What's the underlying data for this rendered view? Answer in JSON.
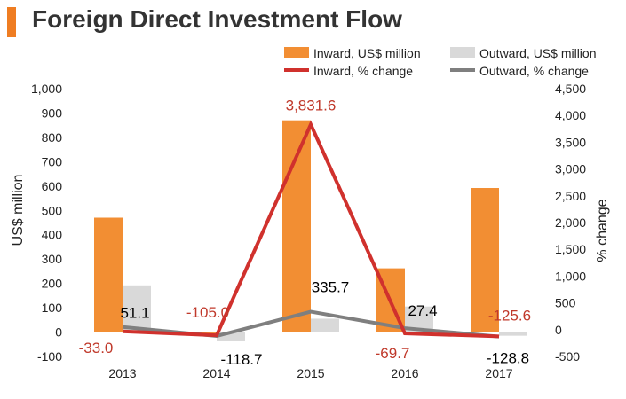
{
  "title": "Foreign Direct Investment Flow",
  "colors": {
    "accent": "#ef7d22",
    "inward_bar": "#f28e33",
    "outward_bar": "#d9d9d9",
    "inward_line": "#d0312d",
    "outward_line": "#7f7f7f",
    "inward_label": "#c0392b",
    "outward_label": "#000000"
  },
  "legend": {
    "inward_bar": "Inward, US$ million",
    "outward_bar": "Outward, US$ million",
    "inward_line": "Inward, % change",
    "outward_line": "Outward, % change"
  },
  "chart_data": {
    "type": "bar",
    "categories": [
      "2013",
      "2014",
      "2015",
      "2016",
      "2017"
    ],
    "series": [
      {
        "name": "Inward, US$ million",
        "type": "bar",
        "axis": "left",
        "values": [
          470,
          -5,
          870,
          262,
          592
        ]
      },
      {
        "name": "Outward, US$ million",
        "type": "bar",
        "axis": "left",
        "values": [
          192,
          -38,
          55,
          105,
          -15
        ]
      },
      {
        "name": "Inward, % change",
        "type": "line",
        "axis": "right",
        "values": [
          -33.0,
          -105.0,
          3831.6,
          -69.7,
          -125.6
        ],
        "labels": [
          "-33.0",
          "-105.0",
          "3,831.6",
          "-69.7",
          "-125.6"
        ]
      },
      {
        "name": "Outward, % change",
        "type": "line",
        "axis": "right",
        "values": [
          51.1,
          -118.7,
          335.7,
          27.4,
          -128.8
        ],
        "labels": [
          "51.1",
          "-118.7",
          "335.7",
          "27.4",
          "-128.8"
        ]
      }
    ],
    "ylabel": "US$ million",
    "y2label": "% change",
    "ylim": [
      -100,
      1000
    ],
    "y2lim": [
      -500,
      4500
    ],
    "yticks": [
      "-100",
      "0",
      "100",
      "200",
      "300",
      "400",
      "500",
      "600",
      "700",
      "800",
      "900",
      "1,000"
    ],
    "y2ticks": [
      "-500",
      "0",
      "500",
      "1,000",
      "1,500",
      "2,000",
      "2,500",
      "3,000",
      "3,500",
      "4,000",
      "4,500"
    ],
    "grid": false,
    "legend_position": "top-right"
  }
}
